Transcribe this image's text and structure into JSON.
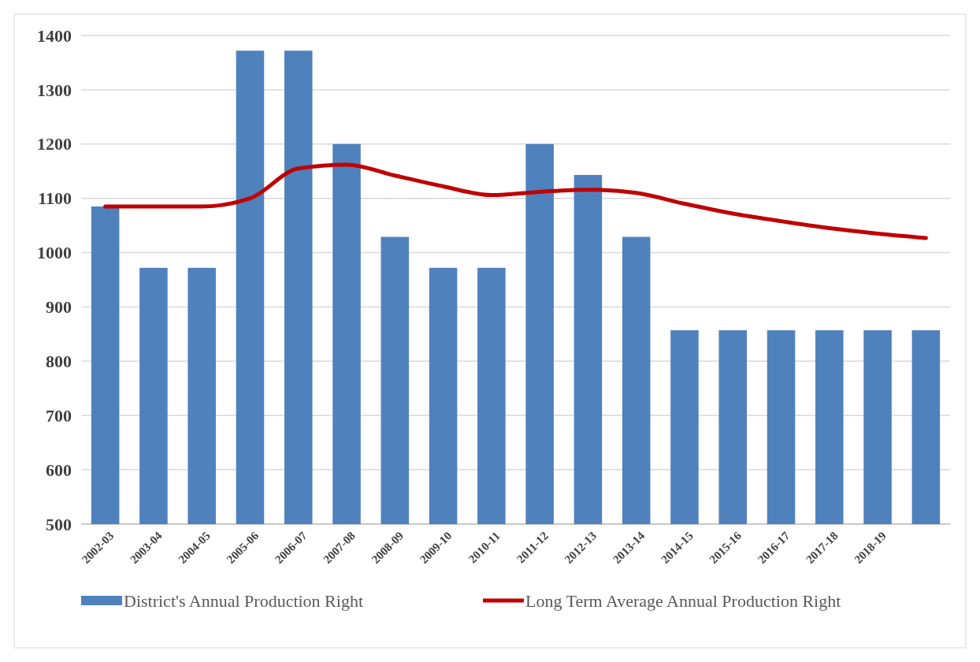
{
  "chart_data": {
    "type": "bar",
    "categories": [
      "2002-03",
      "2003-04",
      "2004-05",
      "2005-06",
      "2006-07",
      "2007-08",
      "2008-09",
      "2009-10",
      "2010-11",
      "2011-12",
      "2012-13",
      "2013-14",
      "2014-15",
      "2015-16",
      "2016-17",
      "2017-18",
      "2018-19",
      null
    ],
    "series": [
      {
        "name": "District's Annual Production Right",
        "color": "#4f81bd",
        "values": [
          1085,
          972,
          972,
          1372,
          1372,
          1200,
          1029,
          972,
          972,
          1200,
          1143,
          1029,
          857,
          857,
          857,
          857,
          857,
          857
        ]
      },
      {
        "name": "Long Term Average Annual Production Right",
        "type": "line",
        "color": "#c00000",
        "values": [
          1085,
          1085,
          1085,
          1100,
          1155,
          1162,
          1142,
          1122,
          1106,
          1112,
          1116,
          1110,
          1090,
          1072,
          1058,
          1045,
          1035,
          1027
        ]
      }
    ],
    "ylim": [
      500,
      1400
    ],
    "yticks": [
      500,
      600,
      700,
      800,
      900,
      1000,
      1100,
      1200,
      1300,
      1400
    ],
    "grid": "y",
    "legend": "bottom"
  }
}
